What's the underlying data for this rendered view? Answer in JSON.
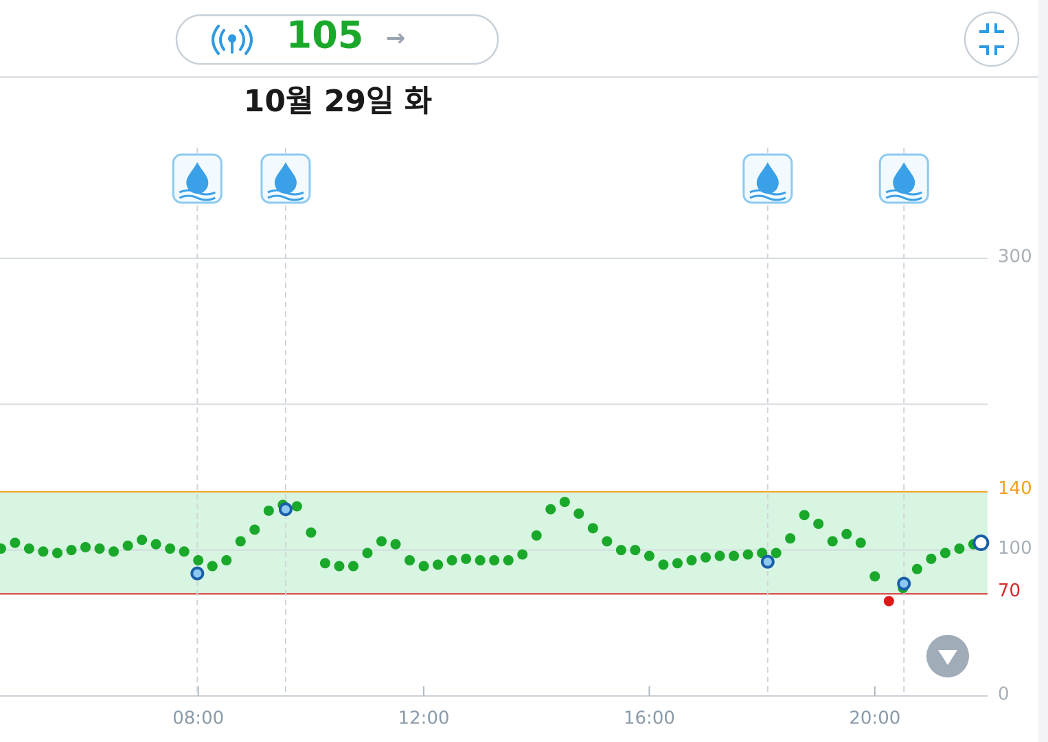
{
  "header": {
    "current_value": 105,
    "trend": "→"
  },
  "date": "10월 29일 화",
  "chart_data": {
    "type": "scatter",
    "xlim": [
      269,
      1320
    ],
    "xticks": [
      {
        "value": 480,
        "label": "08:00"
      },
      {
        "value": 720,
        "label": "12:00"
      },
      {
        "value": 960,
        "label": "16:00"
      },
      {
        "value": 1200,
        "label": "20:00"
      }
    ],
    "ylim": [
      0,
      300
    ],
    "yticks": [
      0,
      100,
      300
    ],
    "grid_values": [
      200
    ],
    "target_low": 70,
    "target_high": 140,
    "target_low_color": "#d42a2a",
    "target_high_color": "#f0a020",
    "band_color": "#d8f5e2",
    "color": "#1aa82a",
    "low_color": "#e01818",
    "x": [
      270,
      285,
      300,
      315,
      330,
      345,
      360,
      375,
      390,
      405,
      420,
      435,
      450,
      465,
      480,
      495,
      510,
      525,
      540,
      555,
      570,
      585,
      600,
      615,
      630,
      645,
      660,
      675,
      690,
      705,
      720,
      735,
      750,
      765,
      780,
      795,
      810,
      825,
      840,
      855,
      870,
      885,
      900,
      915,
      930,
      945,
      960,
      975,
      990,
      1005,
      1020,
      1035,
      1050,
      1065,
      1080,
      1095,
      1110,
      1125,
      1140,
      1155,
      1170,
      1185,
      1200,
      1215,
      1230,
      1245,
      1260,
      1275,
      1290,
      1305
    ],
    "values": [
      101,
      105,
      101,
      99,
      98,
      100,
      102,
      101,
      99,
      103,
      107,
      104,
      101,
      99,
      93,
      89,
      93,
      106,
      114,
      127,
      131,
      130,
      112,
      91,
      89,
      89,
      98,
      106,
      104,
      93,
      89,
      90,
      93,
      94,
      93,
      93,
      93,
      97,
      110,
      128,
      133,
      125,
      115,
      106,
      100,
      100,
      96,
      90,
      91,
      93,
      95,
      96,
      96,
      97,
      98,
      98,
      108,
      124,
      118,
      106,
      111,
      105,
      82,
      65,
      74,
      87,
      94,
      98,
      101,
      104
    ],
    "events": {
      "x": [
        479,
        573,
        1086,
        1231
      ],
      "values": [
        84,
        128,
        92,
        77
      ],
      "color": "#1a5fa8"
    },
    "current": {
      "x": 1313,
      "value": 105
    }
  }
}
